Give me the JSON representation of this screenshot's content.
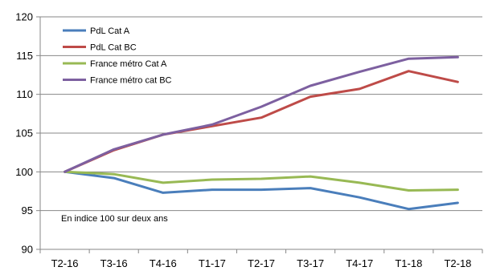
{
  "chart_data": {
    "type": "line",
    "categories": [
      "T2-16",
      "T3-16",
      "T4-16",
      "T1-17",
      "T2-17",
      "T3-17",
      "T4-17",
      "T1-18",
      "T2-18"
    ],
    "ylim": [
      90,
      120
    ],
    "yticks": [
      90,
      95,
      100,
      105,
      110,
      115,
      120
    ],
    "grid": "horizontal",
    "legend_position": "top-left",
    "annotation": "En indice 100 sur deux ans",
    "series": [
      {
        "name": "PdL Cat A",
        "color": "#4a7ebb",
        "values": [
          100,
          99.2,
          97.3,
          97.7,
          97.7,
          97.9,
          96.7,
          95.2,
          96.0
        ]
      },
      {
        "name": "PdL Cat BC",
        "color": "#be4b48",
        "values": [
          100,
          102.8,
          104.8,
          105.9,
          107.0,
          109.7,
          110.7,
          113.0,
          111.6
        ]
      },
      {
        "name": "France métro Cat A",
        "color": "#98b954",
        "values": [
          100,
          99.7,
          98.6,
          99.0,
          99.1,
          99.4,
          98.6,
          97.6,
          97.7
        ]
      },
      {
        "name": "France métro cat BC",
        "color": "#7d60a0",
        "values": [
          100,
          102.9,
          104.8,
          106.1,
          108.4,
          111.1,
          112.9,
          114.6,
          114.8
        ]
      }
    ]
  }
}
